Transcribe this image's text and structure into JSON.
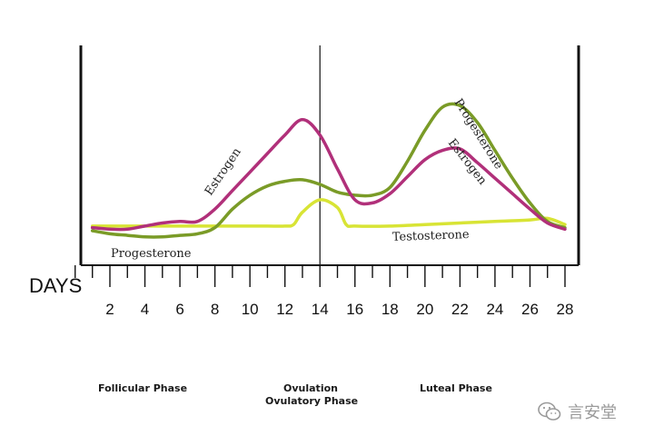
{
  "chart_data": {
    "type": "line",
    "xlabel": "DAYS",
    "xlim": [
      0,
      29
    ],
    "ylim": [
      0,
      100
    ],
    "x_ticks": [
      2,
      4,
      6,
      8,
      10,
      12,
      14,
      16,
      18,
      20,
      22,
      24,
      26,
      28
    ],
    "series": [
      {
        "name": "Estrogen",
        "color": "#b1307a",
        "label_positions": [
          "follicular",
          "luteal"
        ],
        "points": [
          [
            1,
            12
          ],
          [
            2,
            11
          ],
          [
            3,
            11
          ],
          [
            4,
            13
          ],
          [
            5,
            15
          ],
          [
            6,
            16
          ],
          [
            7,
            16
          ],
          [
            8,
            24
          ],
          [
            9,
            36
          ],
          [
            10,
            48
          ],
          [
            11,
            60
          ],
          [
            12,
            72
          ],
          [
            13,
            82
          ],
          [
            14,
            72
          ],
          [
            15,
            50
          ],
          [
            16,
            30
          ],
          [
            17,
            28
          ],
          [
            18,
            34
          ],
          [
            19,
            45
          ],
          [
            20,
            56
          ],
          [
            21,
            62
          ],
          [
            22,
            63
          ],
          [
            23,
            54
          ],
          [
            24,
            44
          ],
          [
            25,
            34
          ],
          [
            26,
            24
          ],
          [
            27,
            15
          ],
          [
            28,
            11
          ]
        ]
      },
      {
        "name": "Progesterone",
        "color": "#7a9b27",
        "label_positions": [
          "follicular",
          "luteal"
        ],
        "points": [
          [
            1,
            10
          ],
          [
            2,
            8
          ],
          [
            3,
            7
          ],
          [
            4,
            6
          ],
          [
            5,
            6
          ],
          [
            6,
            7
          ],
          [
            7,
            8
          ],
          [
            8,
            12
          ],
          [
            9,
            24
          ],
          [
            10,
            33
          ],
          [
            11,
            39
          ],
          [
            12,
            42
          ],
          [
            13,
            43
          ],
          [
            14,
            40
          ],
          [
            15,
            35
          ],
          [
            16,
            33
          ],
          [
            17,
            33
          ],
          [
            18,
            38
          ],
          [
            19,
            55
          ],
          [
            20,
            75
          ],
          [
            21,
            90
          ],
          [
            22,
            91
          ],
          [
            23,
            80
          ],
          [
            24,
            62
          ],
          [
            25,
            44
          ],
          [
            26,
            28
          ],
          [
            27,
            16
          ],
          [
            28,
            12
          ]
        ]
      },
      {
        "name": "Testosterone",
        "color": "#d8e435",
        "label_positions": [
          "luteal"
        ],
        "points": [
          [
            1,
            13
          ],
          [
            2,
            13
          ],
          [
            3,
            13
          ],
          [
            4,
            13
          ],
          [
            5,
            13
          ],
          [
            6,
            13
          ],
          [
            7,
            13
          ],
          [
            8,
            13
          ],
          [
            9,
            13
          ],
          [
            10,
            13
          ],
          [
            11,
            13
          ],
          [
            12,
            13
          ],
          [
            12.5,
            14
          ],
          [
            13,
            22
          ],
          [
            14,
            30
          ],
          [
            15,
            25
          ],
          [
            15.5,
            14
          ],
          [
            16,
            13
          ],
          [
            18,
            13
          ],
          [
            20,
            14
          ],
          [
            22,
            15
          ],
          [
            24,
            16
          ],
          [
            26,
            17
          ],
          [
            27,
            18
          ],
          [
            28,
            14
          ]
        ]
      }
    ],
    "annotations": [
      {
        "text": "Estrogen",
        "series": "Estrogen"
      },
      {
        "text": "Progesterone",
        "series": "Progesterone"
      },
      {
        "text": "Testosterone",
        "series": "Testosterone"
      },
      {
        "text": "Progesterone",
        "series": "Progesterone"
      },
      {
        "text": "Estrogen",
        "series": "Estrogen"
      }
    ],
    "vertical_line_at": 14
  },
  "phases": {
    "follicular": "Follicular Phase",
    "ovulation": "Ovulation",
    "ovulatory": "Ovulatory Phase",
    "luteal": "Luteal Phase"
  },
  "watermark": {
    "text": "言安堂",
    "icon": "wechat-icon"
  }
}
